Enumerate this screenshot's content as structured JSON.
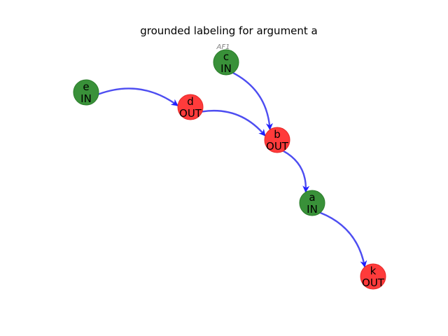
{
  "title": "grounded labeling for argument a",
  "watermark": "AF1",
  "colors": {
    "in": "#2e8b2e",
    "out": "#ff3030",
    "edge": "#3a3af0",
    "arrow": "#1f1fff",
    "in_stroke": "#2b7d2b",
    "out_stroke": "#e62828"
  },
  "nodes": [
    {
      "id": "a",
      "name": "a",
      "label": "IN"
    },
    {
      "id": "b",
      "name": "b",
      "label": "OUT"
    },
    {
      "id": "c",
      "name": "c",
      "label": "IN"
    },
    {
      "id": "d",
      "name": "d",
      "label": "OUT"
    },
    {
      "id": "e",
      "name": "e",
      "label": "IN"
    },
    {
      "id": "k",
      "name": "k",
      "label": "OUT"
    }
  ],
  "edges": [
    {
      "from": "e",
      "to": "d"
    },
    {
      "from": "d",
      "to": "b"
    },
    {
      "from": "c",
      "to": "b"
    },
    {
      "from": "b",
      "to": "a"
    },
    {
      "from": "a",
      "to": "k"
    }
  ]
}
